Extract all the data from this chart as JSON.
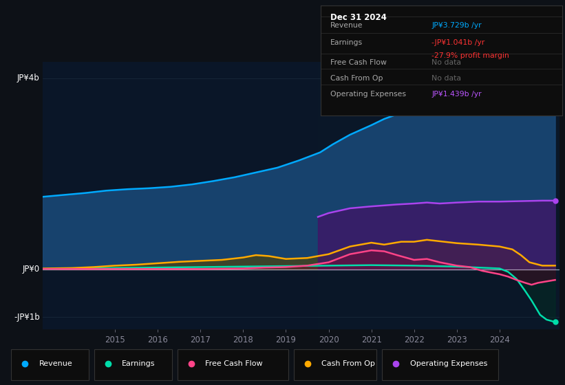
{
  "bg_color": "#0d1117",
  "plot_bg_color": "#0a1628",
  "title_box": {
    "date": "Dec 31 2024",
    "rows": [
      {
        "label": "Revenue",
        "value": "JP¥3.729b /yr",
        "value_color": "#00aaff",
        "subvalue": null,
        "subvalue_color": null
      },
      {
        "label": "Earnings",
        "value": "-JP¥1.041b /yr",
        "value_color": "#ff3333",
        "subvalue": "-27.9% profit margin",
        "subvalue_color": "#ff3333"
      },
      {
        "label": "Free Cash Flow",
        "value": "No data",
        "value_color": "#666666",
        "subvalue": null,
        "subvalue_color": null
      },
      {
        "label": "Cash From Op",
        "value": "No data",
        "value_color": "#666666",
        "subvalue": null,
        "subvalue_color": null
      },
      {
        "label": "Operating Expenses",
        "value": "JP¥1.439b /yr",
        "value_color": "#bb55ff",
        "subvalue": null,
        "subvalue_color": null
      }
    ]
  },
  "ylabel_top": "JP¥4b",
  "ylabel_zero": "JP¥0",
  "ylabel_bottom": "-JP¥1b",
  "ylim": [
    -1.25,
    4.35
  ],
  "x_start_year": 2013.3,
  "x_end_year": 2025.4,
  "xtick_years": [
    2015,
    2016,
    2017,
    2018,
    2019,
    2020,
    2021,
    2022,
    2023,
    2024
  ],
  "legend": [
    {
      "label": "Revenue",
      "color": "#00aaff"
    },
    {
      "label": "Earnings",
      "color": "#00ddaa"
    },
    {
      "label": "Free Cash Flow",
      "color": "#ff4488"
    },
    {
      "label": "Cash From Op",
      "color": "#ffaa00"
    },
    {
      "label": "Operating Expenses",
      "color": "#aa44ee"
    }
  ],
  "shaded_region_start": 2019.75,
  "revenue": {
    "x": [
      2013.3,
      2013.8,
      2014.3,
      2014.8,
      2015.3,
      2015.8,
      2016.3,
      2016.8,
      2017.3,
      2017.8,
      2018.3,
      2018.8,
      2019.3,
      2019.8,
      2020.1,
      2020.5,
      2021.0,
      2021.3,
      2021.7,
      2022.0,
      2022.3,
      2022.6,
      2023.0,
      2023.3,
      2023.6,
      2024.0,
      2024.3,
      2024.6,
      2024.9,
      2025.1,
      2025.3
    ],
    "y": [
      1.52,
      1.56,
      1.6,
      1.65,
      1.68,
      1.7,
      1.73,
      1.78,
      1.85,
      1.93,
      2.03,
      2.13,
      2.28,
      2.45,
      2.62,
      2.82,
      3.02,
      3.15,
      3.28,
      3.45,
      3.55,
      3.63,
      3.7,
      3.75,
      3.78,
      3.8,
      3.8,
      3.8,
      3.79,
      3.76,
      3.73
    ],
    "color": "#00aaff",
    "fill_color": "#1a4a7a",
    "fill_alpha": 0.85
  },
  "earnings": {
    "x": [
      2013.3,
      2014.0,
      2015.0,
      2016.0,
      2017.0,
      2018.0,
      2019.0,
      2020.0,
      2021.0,
      2022.0,
      2022.5,
      2023.0,
      2023.5,
      2024.0,
      2024.2,
      2024.4,
      2024.6,
      2024.75,
      2024.85,
      2024.95,
      2025.1,
      2025.3
    ],
    "y": [
      0.01,
      0.02,
      0.03,
      0.04,
      0.05,
      0.06,
      0.07,
      0.08,
      0.09,
      0.08,
      0.07,
      0.06,
      0.04,
      0.02,
      -0.05,
      -0.2,
      -0.45,
      -0.65,
      -0.8,
      -0.95,
      -1.05,
      -1.1
    ],
    "color": "#00ddaa",
    "fill_color": "#006644",
    "fill_alpha": 0.3
  },
  "cash_from_op": {
    "x": [
      2013.3,
      2014.0,
      2014.5,
      2015.0,
      2015.5,
      2016.0,
      2016.5,
      2017.0,
      2017.5,
      2018.0,
      2018.3,
      2018.6,
      2019.0,
      2019.5,
      2020.0,
      2020.5,
      2021.0,
      2021.3,
      2021.7,
      2022.0,
      2022.3,
      2022.7,
      2023.0,
      2023.5,
      2024.0,
      2024.3,
      2024.5,
      2024.7,
      2025.0,
      2025.3
    ],
    "y": [
      0.02,
      0.03,
      0.05,
      0.08,
      0.1,
      0.13,
      0.16,
      0.18,
      0.2,
      0.25,
      0.3,
      0.28,
      0.22,
      0.24,
      0.32,
      0.48,
      0.56,
      0.52,
      0.58,
      0.58,
      0.62,
      0.58,
      0.55,
      0.52,
      0.48,
      0.42,
      0.3,
      0.15,
      0.08,
      0.08
    ],
    "color": "#ffaa00",
    "fill_color": "#554400",
    "fill_alpha": 0.6
  },
  "free_cash_flow": {
    "x": [
      2013.3,
      2014.0,
      2015.0,
      2016.0,
      2017.0,
      2018.0,
      2018.5,
      2019.0,
      2019.5,
      2020.0,
      2020.5,
      2021.0,
      2021.3,
      2021.6,
      2022.0,
      2022.3,
      2022.6,
      2023.0,
      2023.3,
      2023.6,
      2024.0,
      2024.2,
      2024.4,
      2024.6,
      2024.75,
      2024.9,
      2025.1,
      2025.3
    ],
    "y": [
      0.01,
      0.01,
      0.01,
      0.01,
      0.01,
      0.02,
      0.04,
      0.05,
      0.08,
      0.15,
      0.32,
      0.4,
      0.38,
      0.3,
      0.2,
      0.22,
      0.15,
      0.08,
      0.05,
      -0.03,
      -0.1,
      -0.15,
      -0.22,
      -0.28,
      -0.32,
      -0.28,
      -0.25,
      -0.22
    ],
    "color": "#ff4488",
    "fill_color": "#880033",
    "fill_alpha": 0.3
  },
  "operating_expenses": {
    "x": [
      2019.75,
      2020.0,
      2020.5,
      2021.0,
      2021.3,
      2021.6,
      2022.0,
      2022.3,
      2022.6,
      2023.0,
      2023.5,
      2024.0,
      2024.5,
      2025.0,
      2025.3
    ],
    "y": [
      1.1,
      1.18,
      1.28,
      1.32,
      1.34,
      1.36,
      1.38,
      1.4,
      1.38,
      1.4,
      1.42,
      1.42,
      1.43,
      1.44,
      1.44
    ],
    "color": "#aa44ee",
    "fill_color": "#441166",
    "fill_alpha": 0.7
  }
}
